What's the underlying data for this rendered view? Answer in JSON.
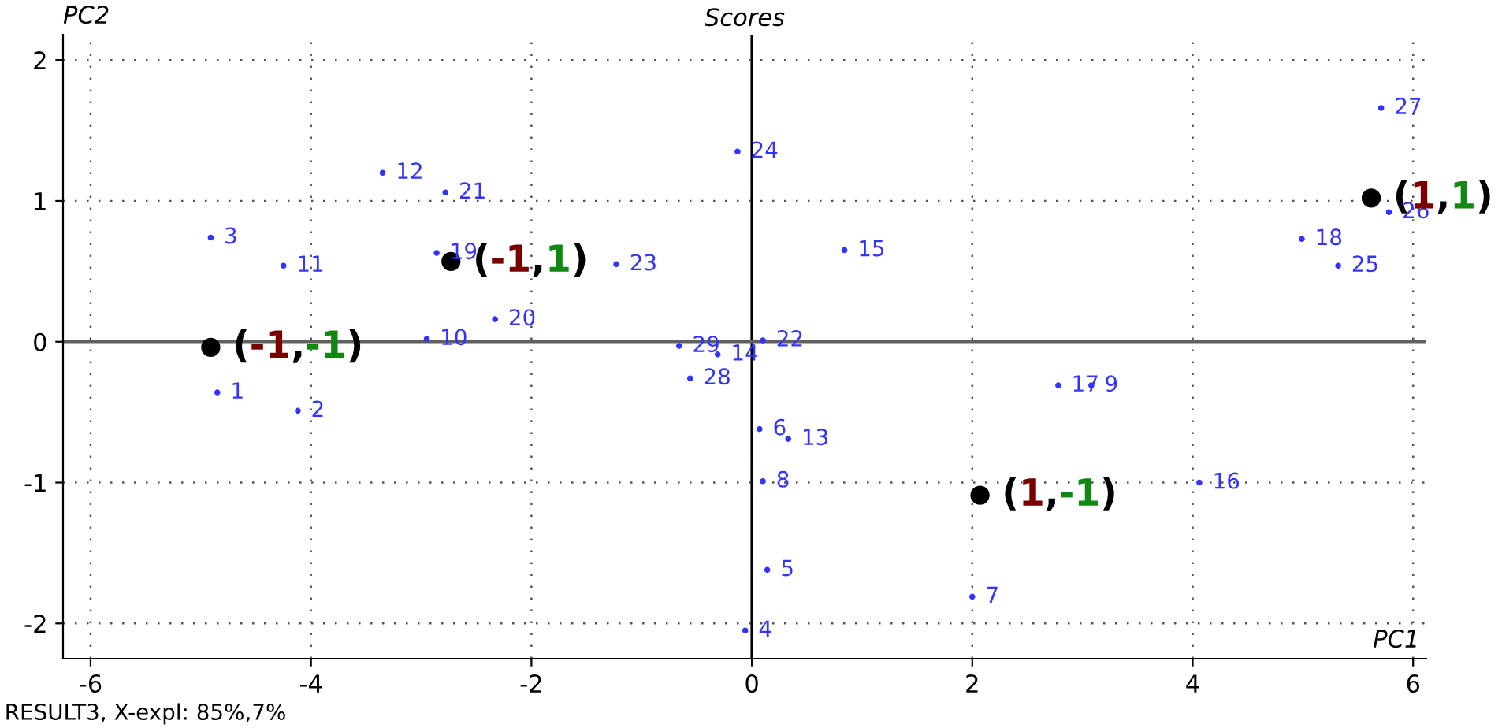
{
  "chart_data": {
    "type": "scatter",
    "title": "Scores",
    "xlabel": "PC1",
    "ylabel": "PC2",
    "xlim": [
      -6.25,
      6.12
    ],
    "ylim": [
      -2.25,
      2.18
    ],
    "xticks": [
      -6,
      -4,
      -2,
      0,
      2,
      4,
      6
    ],
    "yticks": [
      -2,
      -1,
      0,
      1,
      2
    ],
    "grid": true,
    "marker": "circle",
    "ref_lines": [
      {
        "axis": "x",
        "value": 0,
        "color": "#000000"
      },
      {
        "axis": "y",
        "value": 0,
        "color": "#606060"
      }
    ],
    "series": [
      {
        "color": "#3333ff",
        "x": [
          -4.85,
          -4.12,
          -4.91,
          -0.06,
          0.14,
          0.07,
          2.0,
          0.1,
          3.08,
          -2.95,
          -4.25,
          -3.35,
          0.33,
          -0.31,
          0.84,
          4.06,
          2.78,
          4.99,
          -2.86,
          -2.33,
          -2.78,
          0.1,
          -1.23,
          -0.13,
          5.32,
          5.78,
          5.71,
          -0.56,
          -0.66
        ],
        "values": [
          -0.36,
          -0.49,
          0.74,
          -2.05,
          -1.62,
          -0.62,
          -1.81,
          -0.99,
          -0.31,
          0.02,
          0.54,
          1.2,
          -0.69,
          -0.09,
          0.65,
          -1.0,
          -0.31,
          0.73,
          0.63,
          0.16,
          1.06,
          0.01,
          0.55,
          1.35,
          0.54,
          0.92,
          1.66,
          -0.26,
          -0.03
        ]
      },
      {
        "color": "#000000",
        "x": [
          -4.91,
          -2.73,
          2.07,
          5.62
        ],
        "values": [
          -0.04,
          0.57,
          -1.09,
          1.02
        ]
      }
    ],
    "annotations": [
      {
        "text": "1",
        "x": -4.85,
        "y": -0.36
      },
      {
        "text": "2",
        "x": -4.12,
        "y": -0.49
      },
      {
        "text": "3",
        "x": -4.91,
        "y": 0.74
      },
      {
        "text": "4",
        "x": -0.06,
        "y": -2.05
      },
      {
        "text": "5",
        "x": 0.14,
        "y": -1.62
      },
      {
        "text": "6",
        "x": 0.07,
        "y": -0.62
      },
      {
        "text": "7",
        "x": 2.0,
        "y": -1.81
      },
      {
        "text": "8",
        "x": 0.1,
        "y": -0.99
      },
      {
        "text": "9",
        "x": 3.08,
        "y": -0.31
      },
      {
        "text": "10",
        "x": -2.95,
        "y": 0.02
      },
      {
        "text": "11",
        "x": -4.25,
        "y": 0.54
      },
      {
        "text": "12",
        "x": -3.35,
        "y": 1.2
      },
      {
        "text": "13",
        "x": 0.33,
        "y": -0.69
      },
      {
        "text": "14",
        "x": -0.31,
        "y": -0.09
      },
      {
        "text": "15",
        "x": 0.84,
        "y": 0.65
      },
      {
        "text": "16",
        "x": 4.06,
        "y": -1.0
      },
      {
        "text": "17",
        "x": 2.78,
        "y": -0.31
      },
      {
        "text": "18",
        "x": 4.99,
        "y": 0.73
      },
      {
        "text": "19",
        "x": -2.86,
        "y": 0.63
      },
      {
        "text": "20",
        "x": -2.33,
        "y": 0.16
      },
      {
        "text": "21",
        "x": -2.78,
        "y": 1.06
      },
      {
        "text": "22",
        "x": 0.1,
        "y": 0.01
      },
      {
        "text": "23",
        "x": -1.23,
        "y": 0.55
      },
      {
        "text": "24",
        "x": -0.13,
        "y": 1.35
      },
      {
        "text": "25",
        "x": 5.32,
        "y": 0.54
      },
      {
        "text": "26",
        "x": 5.78,
        "y": 0.92
      },
      {
        "text": "27",
        "x": 5.71,
        "y": 1.66
      },
      {
        "text": "28",
        "x": -0.56,
        "y": -0.26
      },
      {
        "text": "29",
        "x": -0.66,
        "y": -0.03
      },
      {
        "text": "(-1,-1)",
        "x": -4.91,
        "y": -0.04
      },
      {
        "text": "(-1,1)",
        "x": -2.73,
        "y": 0.57
      },
      {
        "text": "(1,-1)",
        "x": 2.07,
        "y": -1.09
      },
      {
        "text": "(1,1)",
        "x": 5.62,
        "y": 1.02
      },
      "RESULT3, X-expl: 85%,7%"
    ]
  }
}
